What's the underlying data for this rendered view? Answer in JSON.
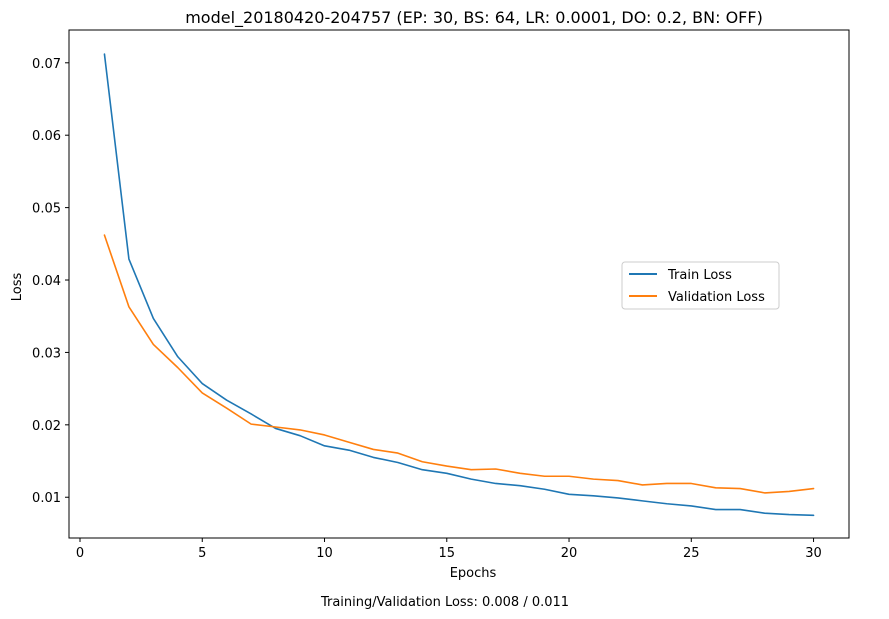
{
  "chart_data": {
    "type": "line",
    "title": "model_20180420-204757 (EP: 30, BS: 64, LR: 0.0001, DO: 0.2, BN: OFF)",
    "xlabel": "Epochs",
    "ylabel": "Loss",
    "xlim": [
      -0.45,
      31.45
    ],
    "ylim": [
      0.00437,
      0.07453
    ],
    "x_ticks": [
      0,
      5,
      10,
      15,
      20,
      25,
      30
    ],
    "x_tick_labels": [
      "0",
      "5",
      "10",
      "15",
      "20",
      "25",
      "30"
    ],
    "y_ticks": [
      0.01,
      0.02,
      0.03,
      0.04,
      0.05,
      0.06,
      0.07
    ],
    "y_tick_labels": [
      "0.01",
      "0.02",
      "0.03",
      "0.04",
      "0.05",
      "0.06",
      "0.07"
    ],
    "grid": false,
    "legend_position": "center-right",
    "x": [
      1,
      2,
      3,
      4,
      5,
      6,
      7,
      8,
      9,
      10,
      11,
      12,
      13,
      14,
      15,
      16,
      17,
      18,
      19,
      20,
      21,
      22,
      23,
      24,
      25,
      26,
      27,
      28,
      29,
      30
    ],
    "series": [
      {
        "name": "Train Loss",
        "color": "#1f77b4",
        "values": [
          0.0712,
          0.0429,
          0.0347,
          0.0294,
          0.0257,
          0.0234,
          0.0215,
          0.0195,
          0.0185,
          0.0171,
          0.0165,
          0.0155,
          0.0148,
          0.0138,
          0.0133,
          0.0125,
          0.0119,
          0.0116,
          0.0111,
          0.0104,
          0.0102,
          0.0099,
          0.0095,
          0.0091,
          0.0088,
          0.0083,
          0.0083,
          0.0078,
          0.0076,
          0.0075
        ]
      },
      {
        "name": "Validation Loss",
        "color": "#ff7f0e",
        "values": [
          0.0462,
          0.0363,
          0.0311,
          0.0279,
          0.0244,
          0.0223,
          0.0201,
          0.0197,
          0.0193,
          0.0186,
          0.0176,
          0.0166,
          0.0161,
          0.0149,
          0.0143,
          0.0138,
          0.0139,
          0.0133,
          0.0129,
          0.0129,
          0.0125,
          0.0123,
          0.0117,
          0.0119,
          0.0119,
          0.0113,
          0.0112,
          0.0106,
          0.0108,
          0.0112
        ]
      }
    ],
    "annotation": "Training/Validation Loss: 0.008 / 0.011"
  }
}
